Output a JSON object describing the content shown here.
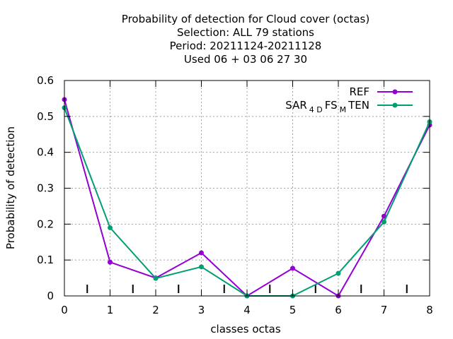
{
  "chart_data": {
    "type": "line",
    "title_lines": [
      "Probability of detection  for Cloud cover (octas)",
      "Selection: ALL     79 stations",
      "Period: 20211124-20211128",
      "Used  06 + 03 06 27 30"
    ],
    "xlabel": "classes octas",
    "ylabel": "Probability of detection",
    "x": [
      0,
      1,
      2,
      3,
      4,
      5,
      6,
      7,
      8
    ],
    "xlim": [
      0,
      8
    ],
    "ylim": [
      0,
      0.6
    ],
    "xticks": [
      "0",
      "1",
      "2",
      "3",
      "4",
      "5",
      "6",
      "7",
      "8"
    ],
    "yticks": [
      "0",
      "0.1",
      "0.2",
      "0.3",
      "0.4",
      "0.5",
      "0.6"
    ],
    "grid": true,
    "legend_position": "top-right",
    "series": [
      {
        "name": "REF",
        "legend": {
          "parts": [
            {
              "text": "REF",
              "sub": false
            }
          ]
        },
        "color": "#9400d3",
        "values": [
          0.547,
          0.094,
          0.05,
          0.12,
          0.0,
          0.077,
          0.0,
          0.222,
          0.476
        ]
      },
      {
        "name": "SAR4DFSMTEN",
        "legend": {
          "parts": [
            {
              "text": "SAR",
              "sub": false
            },
            {
              "text": "4 D",
              "sub": true
            },
            {
              "text": "FS",
              "sub": false
            },
            {
              "text": "M",
              "sub": true
            },
            {
              "text": "TEN",
              "sub": false
            }
          ]
        },
        "color": "#009e73",
        "values": [
          0.524,
          0.19,
          0.049,
          0.081,
          0.0,
          0.0,
          0.063,
          0.206,
          0.485
        ]
      }
    ]
  }
}
